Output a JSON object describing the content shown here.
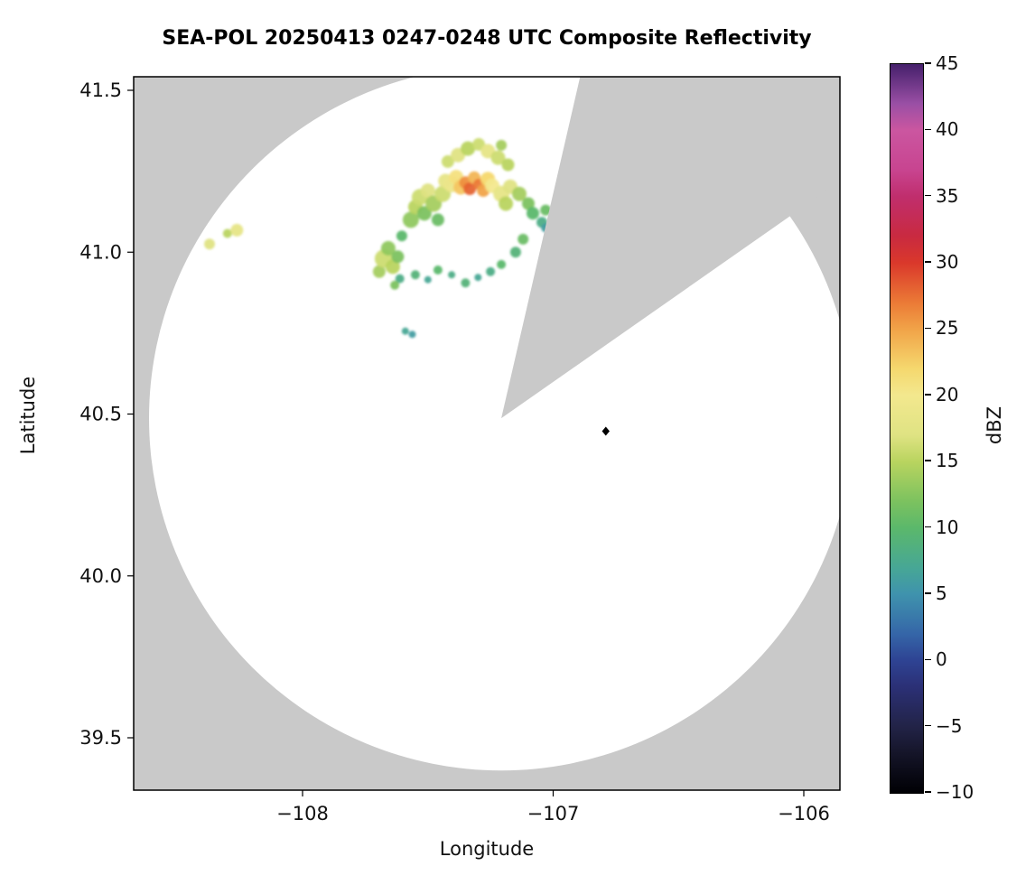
{
  "title": "SEA-POL 20250413 0247-0248 UTC Composite Reflectivity",
  "axes": {
    "xlabel": "Longitude",
    "ylabel": "Latitude",
    "x_ticks": [
      -108,
      -107,
      -106
    ],
    "y_ticks": [
      41.5,
      41.0,
      40.5,
      40.0,
      39.5
    ],
    "x_range": [
      -108.67,
      -105.86
    ],
    "y_range": [
      39.34,
      41.54
    ]
  },
  "colorbar": {
    "label": "dBZ",
    "min": -10,
    "max": 45,
    "ticks": [
      45,
      40,
      35,
      30,
      25,
      20,
      15,
      10,
      5,
      0,
      -5,
      -10
    ],
    "stops": [
      [
        -10,
        "#000004"
      ],
      [
        -7,
        "#151529"
      ],
      [
        -5,
        "#222347"
      ],
      [
        -2,
        "#2b3076"
      ],
      [
        0,
        "#2e4393"
      ],
      [
        2,
        "#3566a8"
      ],
      [
        5,
        "#3f93ad"
      ],
      [
        7,
        "#47a795"
      ],
      [
        10,
        "#5bb86b"
      ],
      [
        12,
        "#7cc25f"
      ],
      [
        15,
        "#b9d45f"
      ],
      [
        17,
        "#dfe383"
      ],
      [
        20,
        "#f3e88e"
      ],
      [
        22,
        "#f5d86e"
      ],
      [
        25,
        "#f1a348"
      ],
      [
        27,
        "#eb7a36"
      ],
      [
        30,
        "#da382b"
      ],
      [
        32,
        "#c92a40"
      ],
      [
        35,
        "#c02e6d"
      ],
      [
        37,
        "#c84490"
      ],
      [
        40,
        "#cb56a0"
      ],
      [
        42,
        "#9a4fa5"
      ],
      [
        45,
        "#45206b"
      ]
    ]
  },
  "chart_data": {
    "type": "heatmap",
    "subtype": "radar-composite-reflectivity-map",
    "title": "SEA-POL 20250413 0247-0248 UTC Composite Reflectivity",
    "xlabel": "Longitude",
    "ylabel": "Latitude",
    "units": "dBZ",
    "colors": {
      "coverage": "#ffffff",
      "no_coverage": "#c9c9c9",
      "frame": "#000000"
    },
    "radar": {
      "center_lon": -107.207,
      "center_lat": 40.487,
      "range_deg_lat": 1.088,
      "blocked_sector_deg": [
        13,
        55
      ]
    },
    "marker": {
      "lon": -106.79,
      "lat": 40.447,
      "shape": "diamond",
      "color": "#000000"
    },
    "echoes_lon_lat_dbz_rpx": [
      [
        -108.371,
        41.025,
        17,
        6
      ],
      [
        -108.3,
        41.058,
        15,
        5
      ],
      [
        -108.262,
        41.068,
        18,
        7
      ],
      [
        -107.694,
        40.94,
        14,
        7
      ],
      [
        -107.676,
        40.98,
        16,
        10
      ],
      [
        -107.658,
        41.012,
        13,
        8
      ],
      [
        -107.64,
        40.955,
        15,
        8
      ],
      [
        -107.62,
        40.986,
        12,
        7
      ],
      [
        -107.604,
        41.05,
        10,
        6
      ],
      [
        -107.612,
        40.918,
        8,
        5
      ],
      [
        -107.632,
        40.898,
        12,
        5
      ],
      [
        -107.568,
        41.1,
        13,
        9
      ],
      [
        -107.55,
        41.14,
        15,
        8
      ],
      [
        -107.532,
        41.17,
        16,
        9
      ],
      [
        -107.514,
        41.12,
        12,
        8
      ],
      [
        -107.5,
        41.19,
        17,
        8
      ],
      [
        -107.477,
        41.15,
        14,
        9
      ],
      [
        -107.46,
        41.1,
        11,
        7
      ],
      [
        -107.441,
        41.18,
        16,
        9
      ],
      [
        -107.43,
        41.22,
        18,
        8
      ],
      [
        -107.405,
        41.21,
        19,
        9
      ],
      [
        -107.387,
        41.232,
        21,
        8
      ],
      [
        -107.369,
        41.2,
        23,
        8
      ],
      [
        -107.35,
        41.215,
        26,
        7
      ],
      [
        -107.333,
        41.196,
        28,
        7
      ],
      [
        -107.315,
        41.23,
        24,
        7
      ],
      [
        -107.297,
        41.21,
        27,
        6
      ],
      [
        -107.279,
        41.19,
        25,
        7
      ],
      [
        -107.261,
        41.226,
        22,
        8
      ],
      [
        -107.243,
        41.205,
        20,
        8
      ],
      [
        -107.42,
        41.28,
        16,
        7
      ],
      [
        -107.38,
        41.3,
        17,
        8
      ],
      [
        -107.34,
        41.32,
        15,
        8
      ],
      [
        -107.297,
        41.333,
        16,
        7
      ],
      [
        -107.26,
        41.312,
        18,
        8
      ],
      [
        -107.22,
        41.292,
        16,
        8
      ],
      [
        -107.18,
        41.27,
        15,
        7
      ],
      [
        -107.207,
        41.33,
        14,
        6
      ],
      [
        -107.207,
        41.18,
        18,
        9
      ],
      [
        -107.189,
        41.15,
        15,
        8
      ],
      [
        -107.171,
        41.202,
        17,
        8
      ],
      [
        -107.135,
        41.18,
        14,
        8
      ],
      [
        -107.099,
        41.15,
        12,
        7
      ],
      [
        -107.081,
        41.12,
        10,
        7
      ],
      [
        -107.045,
        41.092,
        8,
        6
      ],
      [
        -107.03,
        41.13,
        11,
        6
      ],
      [
        -107.03,
        41.075,
        6,
        5
      ],
      [
        -107.55,
        40.93,
        9,
        5
      ],
      [
        -107.5,
        40.915,
        7,
        4
      ],
      [
        -107.46,
        40.945,
        10,
        5
      ],
      [
        -107.405,
        40.93,
        8,
        4
      ],
      [
        -107.35,
        40.905,
        9,
        5
      ],
      [
        -107.3,
        40.922,
        7,
        4
      ],
      [
        -107.25,
        40.94,
        8,
        5
      ],
      [
        -107.207,
        40.962,
        10,
        5
      ],
      [
        -107.15,
        41.0,
        9,
        6
      ],
      [
        -107.12,
        41.04,
        11,
        6
      ],
      [
        -107.59,
        40.756,
        7,
        4
      ],
      [
        -107.562,
        40.746,
        6,
        4
      ]
    ]
  }
}
